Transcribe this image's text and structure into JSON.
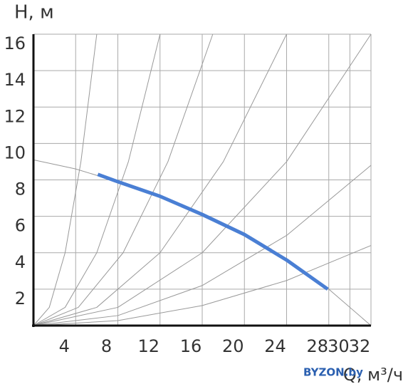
{
  "chart_data": {
    "type": "line",
    "y_label": "Н, м",
    "x_label": "Q, м³/ч",
    "watermark": "BYZON.by",
    "xlim": [
      0,
      32
    ],
    "ylim": [
      0,
      16
    ],
    "xticks": [
      4,
      8,
      12,
      16,
      20,
      24,
      28,
      30,
      32
    ],
    "yticks": [
      2,
      4,
      6,
      8,
      10,
      12,
      14,
      16
    ],
    "grid": true,
    "series": [
      {
        "color": "#4a7fd4",
        "x": [
          6.1,
          8,
          12,
          16,
          20,
          24,
          27.9
        ],
        "values": [
          8.3,
          7.9,
          7.1,
          6.1,
          5.0,
          3.6,
          2.0
        ]
      },
      {
        "color": "#999999",
        "x": [
          0,
          4,
          8,
          12,
          16,
          20,
          24,
          28,
          32
        ],
        "values": [
          9.1,
          8.6,
          7.9,
          7.1,
          6.1,
          5.0,
          3.6,
          2.0,
          0
        ]
      },
      {
        "color": "#999999",
        "x": [
          0,
          1.5,
          3,
          4.5,
          6
        ],
        "values": [
          0,
          1,
          4,
          9,
          16
        ]
      },
      {
        "color": "#999999",
        "x": [
          0,
          3,
          6,
          9,
          12
        ],
        "values": [
          0,
          1,
          4,
          9,
          16
        ]
      },
      {
        "color": "#999999",
        "x": [
          0,
          4.25,
          8.5,
          12.75,
          17
        ],
        "values": [
          0,
          1,
          4,
          9,
          16
        ]
      },
      {
        "color": "#999999",
        "x": [
          0,
          6,
          12,
          18,
          24
        ],
        "values": [
          0,
          1,
          4,
          9,
          16
        ]
      },
      {
        "color": "#999999",
        "x": [
          0,
          8,
          16,
          24,
          32
        ],
        "values": [
          0,
          1,
          4,
          9,
          16
        ]
      },
      {
        "color": "#999999",
        "x": [
          0,
          8,
          16,
          24,
          32
        ],
        "values": [
          0,
          0.55,
          2.2,
          4.95,
          8.8
        ]
      },
      {
        "color": "#999999",
        "x": [
          0,
          8,
          16,
          24,
          32
        ],
        "values": [
          0,
          0.275,
          1.1,
          2.475,
          4.4
        ]
      }
    ]
  }
}
